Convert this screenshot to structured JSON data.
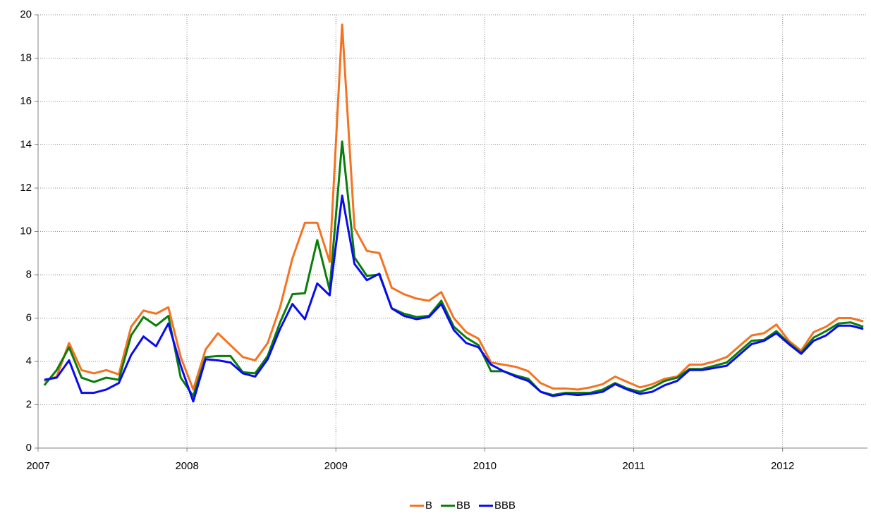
{
  "chart_data": {
    "type": "line",
    "x": [
      2007.042,
      2007.125,
      2007.208,
      2007.292,
      2007.375,
      2007.458,
      2007.542,
      2007.625,
      2007.708,
      2007.792,
      2007.875,
      2007.958,
      2008.042,
      2008.125,
      2008.208,
      2008.292,
      2008.375,
      2008.458,
      2008.542,
      2008.625,
      2008.708,
      2008.792,
      2008.875,
      2008.958,
      2009.042,
      2009.125,
      2009.208,
      2009.292,
      2009.375,
      2009.458,
      2009.542,
      2009.625,
      2009.708,
      2009.792,
      2009.875,
      2009.958,
      2010.042,
      2010.125,
      2010.208,
      2010.292,
      2010.375,
      2010.458,
      2010.542,
      2010.625,
      2010.708,
      2010.792,
      2010.875,
      2010.958,
      2011.042,
      2011.125,
      2011.208,
      2011.292,
      2011.375,
      2011.458,
      2011.542,
      2011.625,
      2011.708,
      2011.792,
      2011.875,
      2011.958,
      2012.042,
      2012.125,
      2012.208,
      2012.292,
      2012.375,
      2012.458,
      2012.542
    ],
    "series": [
      {
        "name": "B",
        "color": "#f47321",
        "values": [
          3.1,
          3.3,
          4.85,
          3.6,
          3.45,
          3.6,
          3.4,
          5.6,
          6.35,
          6.2,
          6.5,
          4.2,
          2.7,
          4.55,
          5.3,
          4.75,
          4.2,
          4.05,
          4.85,
          6.5,
          8.75,
          10.4,
          10.4,
          8.6,
          19.55,
          10.15,
          9.1,
          9.0,
          7.4,
          7.1,
          6.9,
          6.8,
          7.2,
          6.0,
          5.35,
          5.05,
          3.95,
          3.85,
          3.75,
          3.55,
          3.0,
          2.75,
          2.75,
          2.7,
          2.8,
          2.95,
          3.3,
          3.05,
          2.8,
          2.95,
          3.2,
          3.3,
          3.85,
          3.85,
          4.0,
          4.2,
          4.7,
          5.2,
          5.3,
          5.7,
          4.95,
          4.5,
          5.35,
          5.6,
          6.0,
          6.0,
          5.85
        ]
      },
      {
        "name": "BB",
        "color": "#0a7d0a",
        "values": [
          2.9,
          3.6,
          4.65,
          3.25,
          3.05,
          3.25,
          3.15,
          5.2,
          6.05,
          5.65,
          6.1,
          3.25,
          2.4,
          4.2,
          4.25,
          4.25,
          3.5,
          3.45,
          4.25,
          5.8,
          7.1,
          7.15,
          9.6,
          7.3,
          14.15,
          8.8,
          7.95,
          8.0,
          6.45,
          6.2,
          6.05,
          6.1,
          6.8,
          5.6,
          5.1,
          4.75,
          3.55,
          3.55,
          3.35,
          3.2,
          2.6,
          2.45,
          2.55,
          2.55,
          2.55,
          2.7,
          3.0,
          2.75,
          2.6,
          2.8,
          3.1,
          3.25,
          3.65,
          3.65,
          3.8,
          3.95,
          4.45,
          4.95,
          5.0,
          5.4,
          4.85,
          4.4,
          5.1,
          5.4,
          5.75,
          5.8,
          5.6
        ]
      },
      {
        "name": "BBB",
        "color": "#0a0af0",
        "values": [
          3.15,
          3.25,
          4.05,
          2.55,
          2.55,
          2.7,
          3.0,
          4.3,
          5.15,
          4.7,
          5.75,
          3.8,
          2.15,
          4.1,
          4.05,
          3.95,
          3.45,
          3.3,
          4.1,
          5.5,
          6.65,
          5.95,
          7.6,
          7.05,
          11.65,
          8.5,
          7.75,
          8.05,
          6.45,
          6.1,
          5.95,
          6.05,
          6.65,
          5.45,
          4.85,
          4.65,
          3.85,
          3.55,
          3.3,
          3.1,
          2.6,
          2.4,
          2.5,
          2.45,
          2.5,
          2.6,
          2.95,
          2.7,
          2.5,
          2.6,
          2.9,
          3.1,
          3.6,
          3.6,
          3.7,
          3.8,
          4.3,
          4.8,
          4.95,
          5.3,
          4.8,
          4.35,
          4.95,
          5.2,
          5.65,
          5.65,
          5.5
        ]
      }
    ],
    "xlim": [
      2007,
      2012.57
    ],
    "xticks": [
      2007,
      2008,
      2009,
      2010,
      2011,
      2012
    ],
    "ylim": [
      0,
      20
    ],
    "yticks": [
      0,
      2,
      4,
      6,
      8,
      10,
      12,
      14,
      16,
      18,
      20
    ],
    "grid": true,
    "legend": "bottom"
  }
}
